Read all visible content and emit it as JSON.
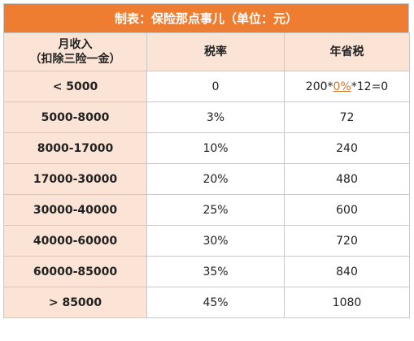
{
  "title": "制表：保险那点事儿（单位：元）",
  "headers": {
    "income_line1": "月收入",
    "income_line2": "（扣除三险一金）",
    "rate": "税率",
    "saving": "年省税"
  },
  "first_row": {
    "range": "< 5000",
    "rate": "0",
    "saving_prefix": "200*",
    "saving_link": "0%",
    "saving_suffix": "*12=0"
  },
  "rows": [
    {
      "range": "5000-8000",
      "rate": "3%",
      "saving": "72"
    },
    {
      "range": "8000-17000",
      "rate": "10%",
      "saving": "240"
    },
    {
      "range": "17000-30000",
      "rate": "20%",
      "saving": "480"
    },
    {
      "range": "30000-40000",
      "rate": "25%",
      "saving": "600"
    },
    {
      "range": "40000-60000",
      "rate": "30%",
      "saving": "720"
    },
    {
      "range": "60000-85000",
      "rate": "35%",
      "saving": "840"
    },
    {
      "range": "> 85000",
      "rate": "45%",
      "saving": "1080"
    }
  ],
  "colors": {
    "title_bg": "#ee7d31",
    "header_bg": "#fbe4d5",
    "link": "#d4752a"
  }
}
